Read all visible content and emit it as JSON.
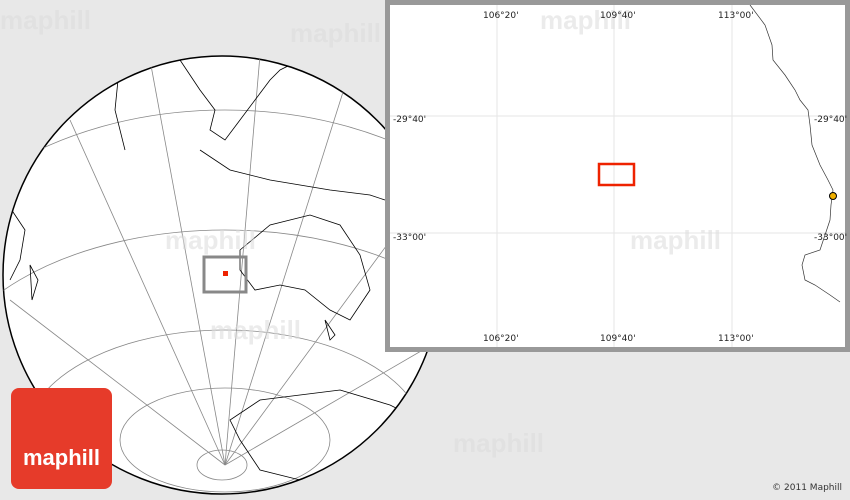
{
  "watermark": "maphill",
  "inset": {
    "top_lon_labels": [
      "106°20'",
      "109°40'",
      "113°00'"
    ],
    "bottom_lon_labels": [
      "106°20'",
      "109°40'",
      "113°00'"
    ],
    "left_lat_labels": [
      "-29°40'",
      "-33°00'"
    ],
    "right_lat_labels": [
      "-29°40'",
      "-33°00'"
    ],
    "highlight_color": "#ee2200",
    "city_marker_color": "#f0b000"
  },
  "globe": {
    "locator_color": "#ee2200",
    "frame_color": "#888888"
  },
  "logo": {
    "text": "maphill",
    "color": "#e63b2a"
  },
  "copyright": "© 2011 Maphill"
}
